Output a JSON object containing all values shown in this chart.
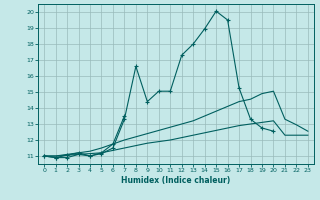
{
  "xlabel": "Humidex (Indice chaleur)",
  "bg_color": "#c5e8e8",
  "grid_color": "#99bbbb",
  "line_color": "#005f5f",
  "xlim": [
    -0.5,
    23.5
  ],
  "ylim": [
    10.5,
    20.5
  ],
  "xticks": [
    0,
    1,
    2,
    3,
    4,
    5,
    6,
    7,
    8,
    9,
    10,
    11,
    12,
    13,
    14,
    15,
    16,
    17,
    18,
    19,
    20,
    21,
    22,
    23
  ],
  "yticks": [
    11,
    12,
    13,
    14,
    15,
    16,
    17,
    18,
    19,
    20
  ],
  "series": [
    {
      "x": [
        0,
        1,
        2,
        3,
        4,
        5,
        6,
        7,
        8,
        9,
        10,
        11,
        12,
        13,
        14,
        15,
        16,
        17,
        18,
        19,
        20,
        21
      ],
      "y": [
        11.0,
        10.9,
        10.9,
        11.1,
        11.0,
        11.15,
        11.5,
        13.3,
        16.6,
        14.4,
        15.05,
        15.05,
        17.3,
        18.0,
        18.95,
        20.05,
        19.5,
        15.25,
        13.3,
        12.75,
        12.55,
        null
      ],
      "marker": true
    },
    {
      "x": [
        0,
        1,
        2,
        3,
        4,
        5,
        6,
        7
      ],
      "y": [
        11.0,
        10.9,
        11.05,
        11.2,
        11.0,
        11.2,
        11.75,
        13.5
      ],
      "marker": true
    },
    {
      "x": [
        0,
        1,
        2,
        3,
        4,
        5,
        6,
        7,
        8,
        9,
        10,
        11,
        12,
        13,
        14,
        15,
        16,
        17,
        18,
        19,
        20,
        21,
        22,
        23
      ],
      "y": [
        11.0,
        11.0,
        11.1,
        11.2,
        11.3,
        11.5,
        11.75,
        12.0,
        12.2,
        12.4,
        12.6,
        12.8,
        13.0,
        13.2,
        13.5,
        13.8,
        14.1,
        14.4,
        14.55,
        14.9,
        15.05,
        13.3,
        12.95,
        12.55
      ],
      "marker": false
    },
    {
      "x": [
        0,
        1,
        2,
        3,
        4,
        5,
        6,
        7,
        8,
        9,
        10,
        11,
        12,
        13,
        14,
        15,
        16,
        17,
        18,
        19,
        20,
        21,
        22,
        23
      ],
      "y": [
        11.0,
        11.0,
        11.05,
        11.1,
        11.15,
        11.2,
        11.35,
        11.5,
        11.65,
        11.8,
        11.9,
        12.0,
        12.15,
        12.3,
        12.45,
        12.6,
        12.75,
        12.9,
        13.0,
        13.1,
        13.2,
        12.3,
        12.3,
        12.3
      ],
      "marker": false
    }
  ]
}
